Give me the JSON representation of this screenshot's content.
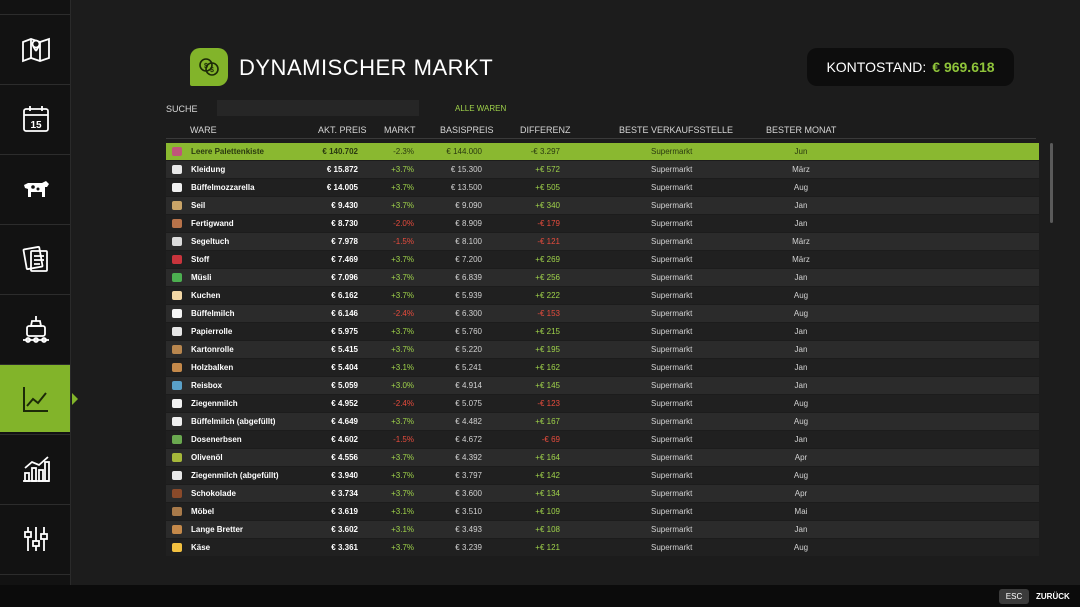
{
  "header": {
    "title": "DYNAMISCHER MARKT",
    "balance_label": "KONTOSTAND:",
    "balance_value": "€ 969.618"
  },
  "search": {
    "label": "SUCHE",
    "value": ""
  },
  "filter": {
    "label": "ALLE WAREN"
  },
  "columns": [
    "WARE",
    "AKT. PREIS",
    "MARKT",
    "BASISPREIS",
    "DIFFERENZ",
    "BESTE VERKAUFSSTELLE",
    "BESTER MONAT"
  ],
  "rows": [
    {
      "name": "Leere Palettenkiste",
      "price": "€ 140.702",
      "markt": "-2.3%",
      "basis": "€ 144.000",
      "diff": "-€ 3.297",
      "stelle": "Supermarkt",
      "monat": "Jun",
      "trend": "neg",
      "icon_color": "#c0557a"
    },
    {
      "name": "Kleidung",
      "price": "€ 15.872",
      "markt": "+3.7%",
      "basis": "€ 15.300",
      "diff": "+€ 572",
      "stelle": "Supermarkt",
      "monat": "März",
      "trend": "pos",
      "icon_color": "#e8e8e8"
    },
    {
      "name": "Büffelmozzarella",
      "price": "€ 14.005",
      "markt": "+3.7%",
      "basis": "€ 13.500",
      "diff": "+€ 505",
      "stelle": "Supermarkt",
      "monat": "Aug",
      "trend": "pos",
      "icon_color": "#f0f0f0"
    },
    {
      "name": "Seil",
      "price": "€ 9.430",
      "markt": "+3.7%",
      "basis": "€ 9.090",
      "diff": "+€ 340",
      "stelle": "Supermarkt",
      "monat": "Jan",
      "trend": "pos",
      "icon_color": "#c9a468"
    },
    {
      "name": "Fertigwand",
      "price": "€ 8.730",
      "markt": "-2.0%",
      "basis": "€ 8.909",
      "diff": "-€ 179",
      "stelle": "Supermarkt",
      "monat": "Jan",
      "trend": "neg",
      "icon_color": "#b8734a"
    },
    {
      "name": "Segeltuch",
      "price": "€ 7.978",
      "markt": "-1.5%",
      "basis": "€ 8.100",
      "diff": "-€ 121",
      "stelle": "Supermarkt",
      "monat": "März",
      "trend": "neg",
      "icon_color": "#dcdcdc"
    },
    {
      "name": "Stoff",
      "price": "€ 7.469",
      "markt": "+3.7%",
      "basis": "€ 7.200",
      "diff": "+€ 269",
      "stelle": "Supermarkt",
      "monat": "März",
      "trend": "pos",
      "icon_color": "#c8343c"
    },
    {
      "name": "Müsli",
      "price": "€ 7.096",
      "markt": "+3.7%",
      "basis": "€ 6.839",
      "diff": "+€ 256",
      "stelle": "Supermarkt",
      "monat": "Jan",
      "trend": "pos",
      "icon_color": "#4caf50"
    },
    {
      "name": "Kuchen",
      "price": "€ 6.162",
      "markt": "+3.7%",
      "basis": "€ 5.939",
      "diff": "+€ 222",
      "stelle": "Supermarkt",
      "monat": "Aug",
      "trend": "pos",
      "icon_color": "#f2d7a6"
    },
    {
      "name": "Büffelmilch",
      "price": "€ 6.146",
      "markt": "-2.4%",
      "basis": "€ 6.300",
      "diff": "-€ 153",
      "stelle": "Supermarkt",
      "monat": "Aug",
      "trend": "neg",
      "icon_color": "#f5f5f5"
    },
    {
      "name": "Papierrolle",
      "price": "€ 5.975",
      "markt": "+3.7%",
      "basis": "€ 5.760",
      "diff": "+€ 215",
      "stelle": "Supermarkt",
      "monat": "Jan",
      "trend": "pos",
      "icon_color": "#e6e6e6"
    },
    {
      "name": "Kartonrolle",
      "price": "€ 5.415",
      "markt": "+3.7%",
      "basis": "€ 5.220",
      "diff": "+€ 195",
      "stelle": "Supermarkt",
      "monat": "Jan",
      "trend": "pos",
      "icon_color": "#b8864e"
    },
    {
      "name": "Holzbalken",
      "price": "€ 5.404",
      "markt": "+3.1%",
      "basis": "€ 5.241",
      "diff": "+€ 162",
      "stelle": "Supermarkt",
      "monat": "Jan",
      "trend": "pos",
      "icon_color": "#c4894a"
    },
    {
      "name": "Reisbox",
      "price": "€ 5.059",
      "markt": "+3.0%",
      "basis": "€ 4.914",
      "diff": "+€ 145",
      "stelle": "Supermarkt",
      "monat": "Jan",
      "trend": "pos",
      "icon_color": "#5aa0c8"
    },
    {
      "name": "Ziegenmilch",
      "price": "€ 4.952",
      "markt": "-2.4%",
      "basis": "€ 5.075",
      "diff": "-€ 123",
      "stelle": "Supermarkt",
      "monat": "Aug",
      "trend": "neg",
      "icon_color": "#f0f0f0"
    },
    {
      "name": "Büffelmilch (abgefüllt)",
      "price": "€ 4.649",
      "markt": "+3.7%",
      "basis": "€ 4.482",
      "diff": "+€ 167",
      "stelle": "Supermarkt",
      "monat": "Aug",
      "trend": "pos",
      "icon_color": "#f0f0f0"
    },
    {
      "name": "Dosenerbsen",
      "price": "€ 4.602",
      "markt": "-1.5%",
      "basis": "€ 4.672",
      "diff": "-€ 69",
      "stelle": "Supermarkt",
      "monat": "Jan",
      "trend": "neg",
      "icon_color": "#6aa84f"
    },
    {
      "name": "Olivenöl",
      "price": "€ 4.556",
      "markt": "+3.7%",
      "basis": "€ 4.392",
      "diff": "+€ 164",
      "stelle": "Supermarkt",
      "monat": "Apr",
      "trend": "pos",
      "icon_color": "#a6b83a"
    },
    {
      "name": "Ziegenmilch (abgefüllt)",
      "price": "€ 3.940",
      "markt": "+3.7%",
      "basis": "€ 3.797",
      "diff": "+€ 142",
      "stelle": "Supermarkt",
      "monat": "Aug",
      "trend": "pos",
      "icon_color": "#e8e8e8"
    },
    {
      "name": "Schokolade",
      "price": "€ 3.734",
      "markt": "+3.7%",
      "basis": "€ 3.600",
      "diff": "+€ 134",
      "stelle": "Supermarkt",
      "monat": "Apr",
      "trend": "pos",
      "icon_color": "#8a4a2a"
    },
    {
      "name": "Möbel",
      "price": "€ 3.619",
      "markt": "+3.1%",
      "basis": "€ 3.510",
      "diff": "+€ 109",
      "stelle": "Supermarkt",
      "monat": "Mai",
      "trend": "pos",
      "icon_color": "#a87a4a"
    },
    {
      "name": "Lange Bretter",
      "price": "€ 3.602",
      "markt": "+3.1%",
      "basis": "€ 3.493",
      "diff": "+€ 108",
      "stelle": "Supermarkt",
      "monat": "Jan",
      "trend": "pos",
      "icon_color": "#c4894a"
    },
    {
      "name": "Käse",
      "price": "€ 3.361",
      "markt": "+3.7%",
      "basis": "€ 3.239",
      "diff": "+€ 121",
      "stelle": "Supermarkt",
      "monat": "Aug",
      "trend": "pos",
      "icon_color": "#f2c040"
    }
  ],
  "sidebar": {
    "items": [
      {
        "name": "map-icon"
      },
      {
        "name": "calendar-icon",
        "text": "15"
      },
      {
        "name": "animals-icon"
      },
      {
        "name": "contracts-icon"
      },
      {
        "name": "production-icon"
      },
      {
        "name": "market-chart-icon",
        "active": true
      },
      {
        "name": "statistics-icon"
      },
      {
        "name": "settings-icon"
      }
    ]
  },
  "footer": {
    "key": "ESC",
    "label": "ZURÜCK"
  },
  "colors": {
    "accent": "#82b42a",
    "positive": "#9fd24a",
    "negative": "#e84c3d"
  }
}
